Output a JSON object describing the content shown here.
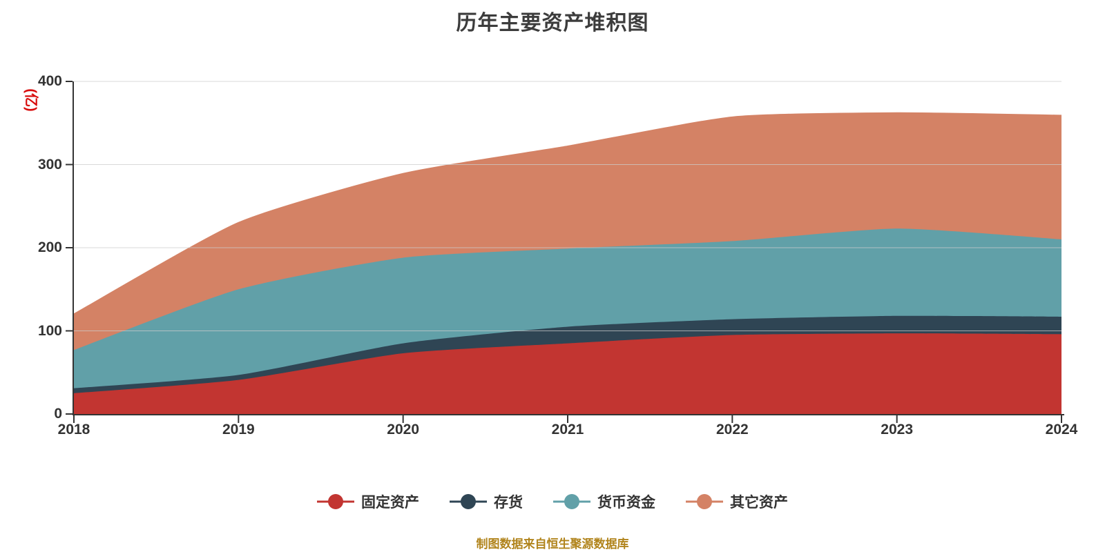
{
  "title": {
    "text": "历年主要资产堆积图",
    "color": "#3c3c3c"
  },
  "y_axis": {
    "unit_label": "(亿)",
    "unit_color": "#d80c0c"
  },
  "footer": {
    "text": "制图数据来自恒生聚源数据库",
    "color": "#b1841c"
  },
  "colors": {
    "background": "#ffffff",
    "grid_line": "#cccccc",
    "axis_line": "#333333",
    "tick_text": "#333333"
  },
  "chart_data": {
    "type": "area",
    "stacked": true,
    "smooth": true,
    "title": "历年主要资产堆积图",
    "ylabel": "(亿)",
    "categories": [
      "2018",
      "2019",
      "2020",
      "2021",
      "2022",
      "2023",
      "2024"
    ],
    "series": [
      {
        "name": "固定资产",
        "key": "fixed-assets",
        "color": "#c23531",
        "values": [
          25,
          41,
          73,
          85,
          95,
          97,
          96
        ]
      },
      {
        "name": "存货",
        "key": "inventory",
        "color": "#2f4554",
        "values": [
          6,
          6,
          12,
          20,
          19,
          21,
          21
        ]
      },
      {
        "name": "货币资金",
        "key": "monetary-funds",
        "color": "#61a0a8",
        "values": [
          46,
          103,
          103,
          94,
          94,
          105,
          93
        ]
      },
      {
        "name": "其它资产",
        "key": "other-assets",
        "color": "#d48265",
        "values": [
          43,
          80,
          101,
          123,
          149,
          139,
          149
        ]
      }
    ],
    "stack_totals": [
      120,
      230,
      289,
      322,
      357,
      362,
      359
    ],
    "ylim": [
      0,
      400
    ],
    "y_ticks": [
      0,
      100,
      200,
      300,
      400
    ],
    "grid": true,
    "legend_position": "bottom"
  }
}
